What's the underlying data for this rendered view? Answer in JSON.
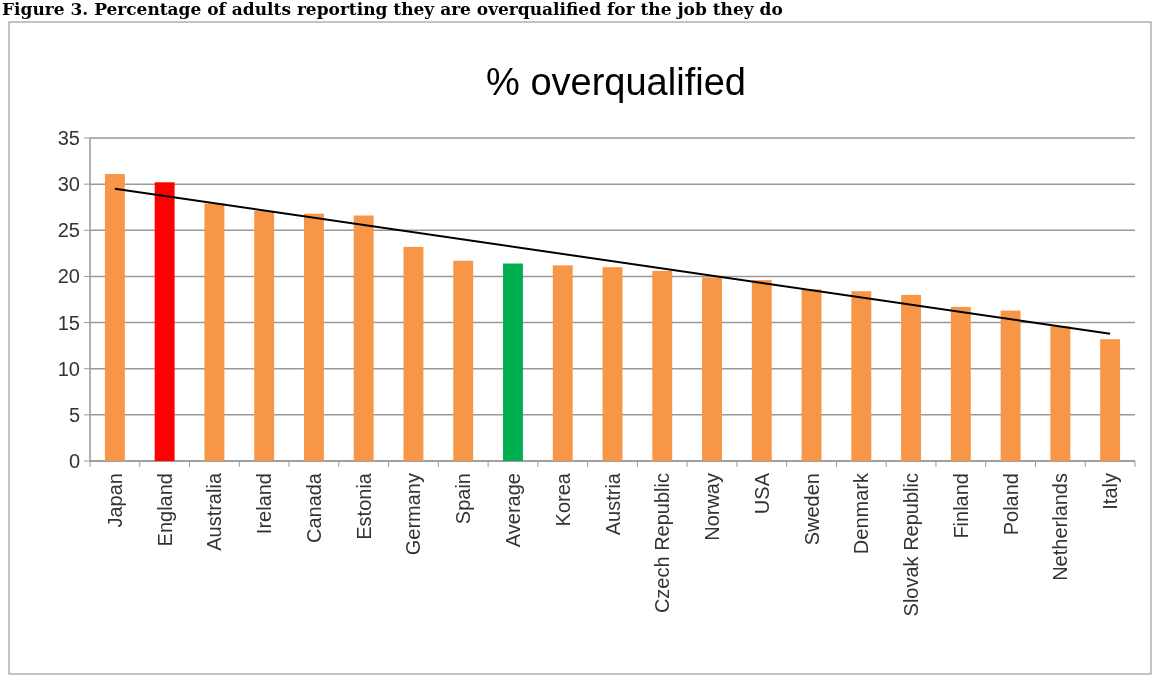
{
  "chart_data": {
    "type": "bar",
    "title": "% overqualified",
    "annotations": [
      "Figure 3. Percentage of adults reporting they are overqualified for the job they do"
    ],
    "categories": [
      "Japan",
      "England",
      "Australia",
      "Ireland",
      "Canada",
      "Estonia",
      "Germany",
      "Spain",
      "Average",
      "Korea",
      "Austria",
      "Czech Republic",
      "Norway",
      "USA",
      "Sweden",
      "Denmark",
      "Slovak Republic",
      "Finland",
      "Poland",
      "Netherlands",
      "Italy"
    ],
    "series": [
      {
        "values": [
          31.1,
          30.2,
          27.9,
          27.1,
          26.8,
          26.6,
          23.2,
          21.7,
          21.4,
          21.2,
          21.0,
          20.6,
          19.9,
          19.6,
          18.6,
          18.4,
          18.0,
          16.7,
          16.3,
          14.6,
          13.2
        ],
        "colors": [
          "#f79646",
          "#ff0000",
          "#f79646",
          "#f79646",
          "#f79646",
          "#f79646",
          "#f79646",
          "#f79646",
          "#00b050",
          "#f79646",
          "#f79646",
          "#f79646",
          "#f79646",
          "#f79646",
          "#f79646",
          "#f79646",
          "#f79646",
          "#f79646",
          "#f79646",
          "#f79646",
          "#f79646"
        ]
      },
      {
        "type": "line",
        "x": [
          "Japan",
          "Italy"
        ],
        "values": [
          29.5,
          13.8
        ],
        "color": "#000000"
      }
    ],
    "ylim": [
      0,
      35
    ],
    "yticks": [
      0,
      5,
      10,
      15,
      20,
      25,
      30,
      35
    ],
    "grid": "y"
  }
}
